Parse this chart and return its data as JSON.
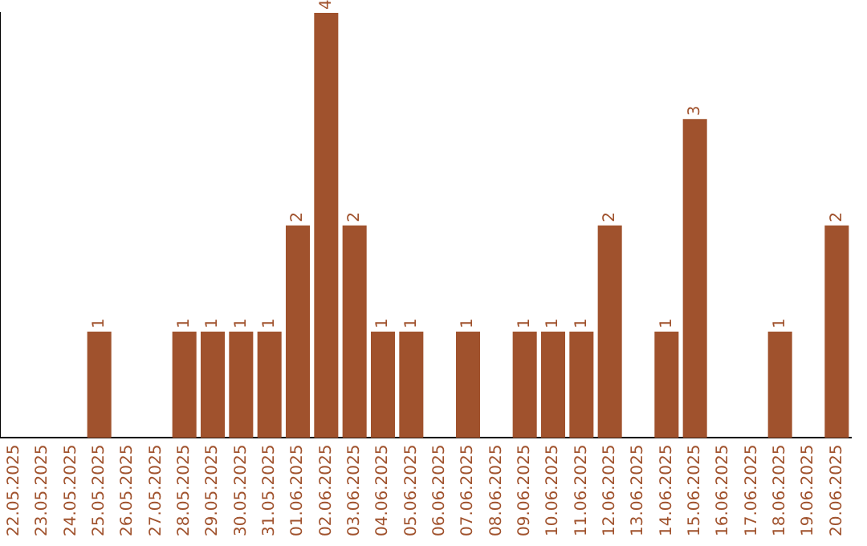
{
  "chart_data": {
    "type": "bar",
    "categories": [
      "22.05.2025",
      "23.05.2025",
      "24.05.2025",
      "25.05.2025",
      "26.05.2025",
      "27.05.2025",
      "28.05.2025",
      "29.05.2025",
      "30.05.2025",
      "31.05.2025",
      "01.06.2025",
      "02.06.2025",
      "03.06.2025",
      "04.06.2025",
      "05.06.2025",
      "06.06.2025",
      "07.06.2025",
      "08.06.2025",
      "09.06.2025",
      "10.06.2025",
      "11.06.2025",
      "12.06.2025",
      "13.06.2025",
      "14.06.2025",
      "15.06.2025",
      "16.06.2025",
      "17.06.2025",
      "18.06.2025",
      "19.06.2025",
      "20.06.2025"
    ],
    "values": [
      0,
      0,
      0,
      1,
      0,
      0,
      1,
      1,
      1,
      1,
      2,
      4,
      2,
      1,
      1,
      0,
      1,
      0,
      1,
      1,
      1,
      2,
      0,
      1,
      3,
      0,
      0,
      1,
      0,
      2
    ],
    "value_labels": [
      null,
      null,
      null,
      "1",
      null,
      null,
      "1",
      "1",
      "1",
      "1",
      "2",
      "4",
      "2",
      "1",
      "1",
      null,
      "1",
      null,
      "1",
      "1",
      "1",
      "2",
      null,
      "1",
      "3",
      null,
      null,
      "1",
      null,
      "2"
    ],
    "color": "#a0522d",
    "ylim": [
      0,
      4
    ],
    "tick_labels": "x",
    "grid": false,
    "legend": false
  }
}
